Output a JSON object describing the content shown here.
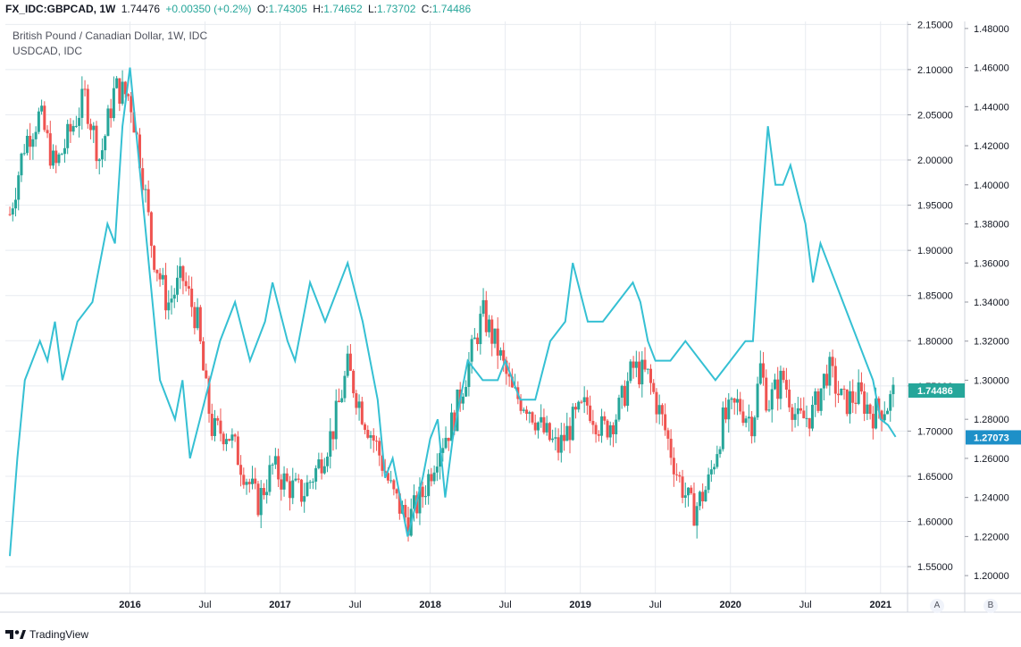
{
  "header": {
    "symbol": "FX_IDC:GBPCAD, 1W",
    "last": "1.74476",
    "change": "+0.00350 (+0.2%)",
    "o_label": "O:",
    "o_val": "1.74305",
    "h_label": "H:",
    "h_val": "1.74652",
    "l_label": "L:",
    "l_val": "1.73702",
    "c_label": "C:",
    "c_val": "1.74486"
  },
  "legend": {
    "main": "British Pound / Canadian Dollar, 1W, IDC",
    "compare": "USDCAD, IDC"
  },
  "footer": {
    "brand": "TradingView"
  },
  "scale_buttons": {
    "a": "A",
    "b": "B"
  },
  "colors": {
    "up": "#26a69a",
    "down": "#ef5350",
    "compare": "#35c0d3",
    "grid": "#e8ebf0",
    "badge_main": "#26a69a",
    "badge_compare": "#1e90c8"
  },
  "chart_data": {
    "type": "line",
    "title": "British Pound / Canadian Dollar, 1W, IDC",
    "x_ticks": [
      "2016",
      "Jul",
      "2017",
      "Jul",
      "2018",
      "Jul",
      "2019",
      "Jul",
      "2020",
      "Jul",
      "2021"
    ],
    "x_range": [
      2015.17,
      2021.18
    ],
    "left_axis": {
      "label": "GBPCAD",
      "range": [
        1.5204,
        2.1533
      ],
      "ticks": [
        "2.15000",
        "2.10000",
        "2.05000",
        "2.00000",
        "1.95000",
        "1.90000",
        "1.85000",
        "1.80000",
        "1.75000",
        "1.70000",
        "1.65000",
        "1.60000",
        "1.55000"
      ],
      "last_value": "1.74486"
    },
    "right_axis": {
      "label": "USDCAD",
      "range": [
        1.1909,
        1.4836
      ],
      "ticks": [
        "1.48000",
        "1.46000",
        "1.44000",
        "1.42000",
        "1.40000",
        "1.38000",
        "1.36000",
        "1.34000",
        "1.32000",
        "1.30000",
        "1.28000",
        "1.26000",
        "1.24000",
        "1.22000",
        "1.20000"
      ],
      "last_value": "1.27073"
    },
    "series": [
      {
        "name": "GBPCAD",
        "type": "candlestick-close",
        "x": [
          2015.2,
          2015.3,
          2015.4,
          2015.5,
          2015.6,
          2015.7,
          2015.8,
          2015.9,
          2016.0,
          2016.08,
          2016.15,
          2016.25,
          2016.35,
          2016.45,
          2016.5,
          2016.55,
          2016.65,
          2016.75,
          2016.85,
          2016.95,
          2017.05,
          2017.15,
          2017.25,
          2017.35,
          2017.45,
          2017.55,
          2017.65,
          2017.75,
          2017.85,
          2017.95,
          2018.05,
          2018.15,
          2018.25,
          2018.35,
          2018.45,
          2018.55,
          2018.65,
          2018.75,
          2018.85,
          2018.95,
          2019.05,
          2019.15,
          2019.25,
          2019.35,
          2019.45,
          2019.55,
          2019.65,
          2019.75,
          2019.85,
          2019.95,
          2020.05,
          2020.15,
          2020.2,
          2020.25,
          2020.35,
          2020.45,
          2020.55,
          2020.65,
          2020.75,
          2020.85,
          2020.95,
          2021.05,
          2021.1
        ],
        "values": [
          1.94,
          2.02,
          2.05,
          1.99,
          2.03,
          2.07,
          2.0,
          2.08,
          2.07,
          1.99,
          1.9,
          1.84,
          1.87,
          1.82,
          1.75,
          1.7,
          1.7,
          1.66,
          1.62,
          1.66,
          1.64,
          1.63,
          1.66,
          1.7,
          1.77,
          1.72,
          1.68,
          1.63,
          1.6,
          1.63,
          1.68,
          1.71,
          1.77,
          1.83,
          1.79,
          1.74,
          1.73,
          1.7,
          1.68,
          1.71,
          1.73,
          1.7,
          1.72,
          1.77,
          1.76,
          1.71,
          1.65,
          1.61,
          1.64,
          1.71,
          1.73,
          1.71,
          1.77,
          1.73,
          1.76,
          1.71,
          1.72,
          1.77,
          1.73,
          1.74,
          1.72,
          1.73,
          1.745
        ]
      },
      {
        "name": "USDCAD",
        "x": [
          2015.2,
          2015.25,
          2015.3,
          2015.4,
          2015.45,
          2015.5,
          2015.55,
          2015.65,
          2015.75,
          2015.85,
          2015.9,
          2015.95,
          2016.0,
          2016.05,
          2016.1,
          2016.2,
          2016.3,
          2016.35,
          2016.4,
          2016.5,
          2016.6,
          2016.7,
          2016.8,
          2016.9,
          2016.95,
          2017.05,
          2017.1,
          2017.2,
          2017.3,
          2017.35,
          2017.45,
          2017.55,
          2017.6,
          2017.65,
          2017.7,
          2017.75,
          2017.85,
          2017.95,
          2018.0,
          2018.05,
          2018.1,
          2018.15,
          2018.25,
          2018.35,
          2018.45,
          2018.5,
          2018.6,
          2018.7,
          2018.8,
          2018.9,
          2018.95,
          2019.05,
          2019.15,
          2019.25,
          2019.35,
          2019.4,
          2019.45,
          2019.5,
          2019.6,
          2019.7,
          2019.8,
          2019.9,
          2020.0,
          2020.1,
          2020.15,
          2020.2,
          2020.25,
          2020.3,
          2020.35,
          2020.4,
          2020.5,
          2020.55,
          2020.6,
          2020.65,
          2020.7,
          2020.8,
          2020.85,
          2020.9,
          2020.95,
          2021.0,
          2021.05,
          2021.1
        ],
        "values": [
          1.21,
          1.26,
          1.3,
          1.32,
          1.31,
          1.33,
          1.3,
          1.33,
          1.34,
          1.38,
          1.37,
          1.43,
          1.46,
          1.42,
          1.38,
          1.3,
          1.28,
          1.3,
          1.26,
          1.29,
          1.32,
          1.34,
          1.31,
          1.33,
          1.35,
          1.32,
          1.31,
          1.35,
          1.33,
          1.34,
          1.36,
          1.33,
          1.31,
          1.29,
          1.25,
          1.26,
          1.22,
          1.25,
          1.27,
          1.28,
          1.24,
          1.27,
          1.31,
          1.3,
          1.3,
          1.31,
          1.29,
          1.29,
          1.32,
          1.33,
          1.36,
          1.33,
          1.33,
          1.34,
          1.35,
          1.34,
          1.32,
          1.31,
          1.31,
          1.32,
          1.31,
          1.3,
          1.31,
          1.32,
          1.32,
          1.38,
          1.43,
          1.4,
          1.4,
          1.41,
          1.38,
          1.35,
          1.37,
          1.36,
          1.35,
          1.33,
          1.32,
          1.31,
          1.3,
          1.28,
          1.277,
          1.271
        ]
      }
    ]
  }
}
